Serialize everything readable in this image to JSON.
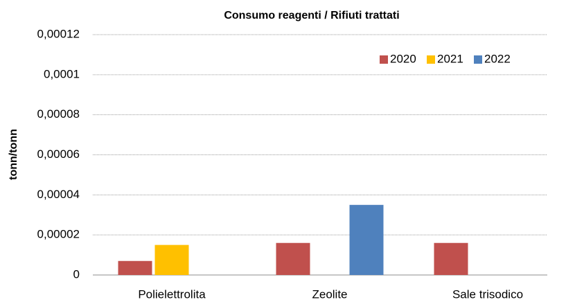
{
  "chart_data": {
    "type": "bar",
    "title": "Consumo reagenti / Rifiuti trattati",
    "y_label": "tonn/tonn",
    "categories": [
      "Polielettrolita",
      "Zeolite",
      "Sale trisodico"
    ],
    "series": [
      {
        "name": "2020",
        "color": "#c0504d",
        "values": [
          7e-06,
          1.6e-05,
          1.6e-05
        ]
      },
      {
        "name": "2021",
        "color": "#ffc000",
        "values": [
          1.5e-05,
          null,
          null
        ]
      },
      {
        "name": "2022",
        "color": "#4f81bd",
        "values": [
          null,
          3.5e-05,
          null
        ]
      }
    ],
    "ylim": [
      0,
      0.00012
    ],
    "yticks": [
      0,
      {
        "value": 2e-05,
        "label": "0,00002"
      },
      {
        "value": 4e-05,
        "label": "0,00004"
      },
      {
        "value": 6e-05,
        "label": "0,00006"
      },
      {
        "value": 8e-05,
        "label": "0,00008"
      },
      {
        "value": 0.0001,
        "label": "0,0001"
      },
      {
        "value": 0.00012,
        "label": "0,00012"
      }
    ],
    "grid": true,
    "legend": "top-right"
  }
}
